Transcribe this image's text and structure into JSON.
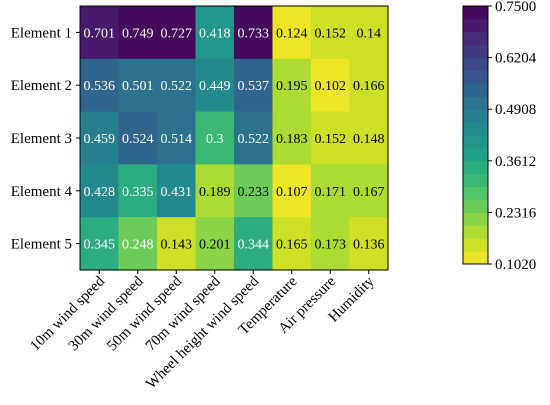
{
  "chart_data": {
    "type": "heatmap",
    "rows": [
      "Element 1",
      "Element 2",
      "Element 3",
      "Element 4",
      "Element 5"
    ],
    "columns": [
      "10m wind speed",
      "30m wind speed",
      "50m wind speed",
      "70m wind speed",
      "Wheel height wind speed",
      "Temperature",
      "Air pressure",
      "Humidity"
    ],
    "values": [
      [
        0.701,
        0.749,
        0.727,
        0.418,
        0.733,
        0.124,
        0.152,
        0.14
      ],
      [
        0.536,
        0.501,
        0.522,
        0.449,
        0.537,
        0.195,
        0.102,
        0.166
      ],
      [
        0.459,
        0.524,
        0.514,
        0.3,
        0.522,
        0.183,
        0.152,
        0.148
      ],
      [
        0.428,
        0.335,
        0.431,
        0.189,
        0.233,
        0.107,
        0.171,
        0.167
      ],
      [
        0.345,
        0.248,
        0.143,
        0.201,
        0.344,
        0.165,
        0.173,
        0.136
      ]
    ],
    "value_labels": [
      [
        "0.701",
        "0.749",
        "0.727",
        "0.418",
        "0.733",
        "0.124",
        "0.152",
        "0.14"
      ],
      [
        "0.536",
        "0.501",
        "0.522",
        "0.449",
        "0.537",
        "0.195",
        "0.102",
        "0.166"
      ],
      [
        "0.459",
        "0.524",
        "0.514",
        "0.3",
        "0.522",
        "0.183",
        "0.152",
        "0.148"
      ],
      [
        "0.428",
        "0.335",
        "0.431",
        "0.189",
        "0.233",
        "0.107",
        "0.171",
        "0.167"
      ],
      [
        "0.345",
        "0.248",
        "0.143",
        "0.201",
        "0.344",
        "0.165",
        "0.173",
        "0.136"
      ]
    ],
    "colorbar": {
      "min": 0.102,
      "max": 0.75,
      "levels": 20,
      "ticks": [
        "0.7500",
        "0.6204",
        "0.4908",
        "0.3612",
        "0.2316",
        "0.1020"
      ],
      "colormap": "viridis"
    },
    "text_colors": {
      "on_dark": "#ffffff",
      "on_light": "#000000"
    }
  }
}
